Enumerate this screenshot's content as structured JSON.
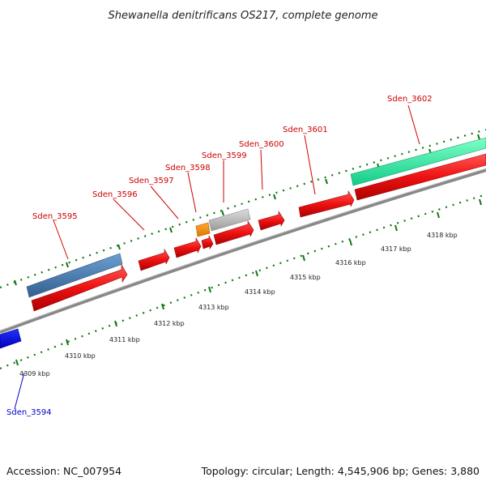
{
  "title": "Shewanella denitrificans OS217, complete genome",
  "footer": {
    "accession": "Accession: NC_007954",
    "summary": "Topology: circular; Length: 4,545,906 bp; Genes: 3,880"
  },
  "colors": {
    "gene_label_red": "#cc0000",
    "gene_label_blue": "#0000cc",
    "cds_red": "#ee1111",
    "feature_blue": "#4477aa",
    "feature_teal": "#22ee99",
    "feature_orange": "#ee8800",
    "feature_gray": "#bbbbbb",
    "feature_darkblue": "#0000ee",
    "axis_gray": "#888888",
    "tick_green": "#117711"
  },
  "gene_labels": [
    {
      "id": "gene-label-sden-3594",
      "text": "Sden_3594",
      "color": "blue"
    },
    {
      "id": "gene-label-sden-3595",
      "text": "Sden_3595",
      "color": "red"
    },
    {
      "id": "gene-label-sden-3596",
      "text": "Sden_3596",
      "color": "red"
    },
    {
      "id": "gene-label-sden-3597",
      "text": "Sden_3597",
      "color": "red"
    },
    {
      "id": "gene-label-sden-3598",
      "text": "Sden_3598",
      "color": "red"
    },
    {
      "id": "gene-label-sden-3599",
      "text": "Sden_3599",
      "color": "red"
    },
    {
      "id": "gene-label-sden-3600",
      "text": "Sden_3600",
      "color": "red"
    },
    {
      "id": "gene-label-sden-3601",
      "text": "Sden_3601",
      "color": "red"
    },
    {
      "id": "gene-label-sden-3602",
      "text": "Sden_3602",
      "color": "red"
    }
  ],
  "kbp_labels": [
    "4309 kbp",
    "4310 kbp",
    "4311 kbp",
    "4312 kbp",
    "4313 kbp",
    "4314 kbp",
    "4315 kbp",
    "4316 kbp",
    "4317 kbp",
    "4318 kbp"
  ]
}
